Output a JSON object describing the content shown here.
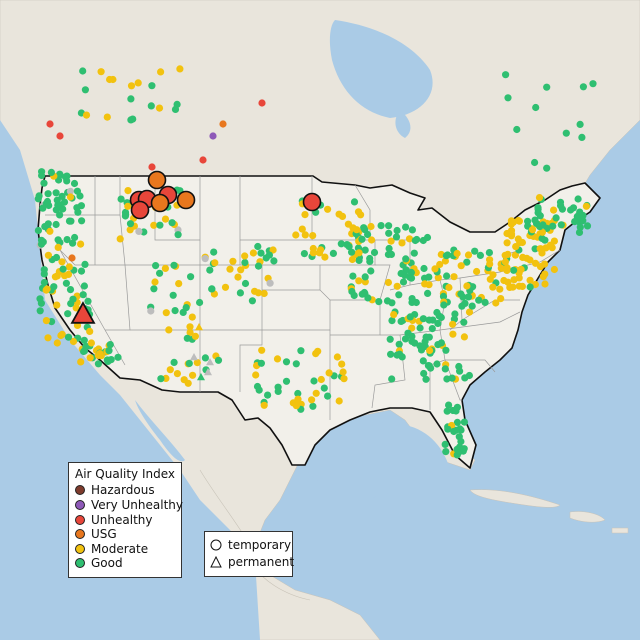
{
  "legend": {
    "title": "Air Quality Index",
    "categories": [
      {
        "label": "Hazardous",
        "color": "#7e3b2d"
      },
      {
        "label": "Very Unhealthy",
        "color": "#8e59b8"
      },
      {
        "label": "Unhealthy",
        "color": "#e8463a"
      },
      {
        "label": "USG",
        "color": "#e8771e"
      },
      {
        "label": "Moderate",
        "color": "#f2c20f"
      },
      {
        "label": "Good",
        "color": "#2fbf71"
      }
    ]
  },
  "shape_legend": {
    "items": [
      {
        "label": "temporary",
        "icon": "circle-icon"
      },
      {
        "label": "permanent",
        "icon": "triangle-icon"
      }
    ]
  },
  "map": {
    "water_color": "#aacbe6",
    "land_color": "#e9e5dc",
    "us_fill_color": "#f2f0ea",
    "no_data_color": "#bdbdbd"
  }
}
